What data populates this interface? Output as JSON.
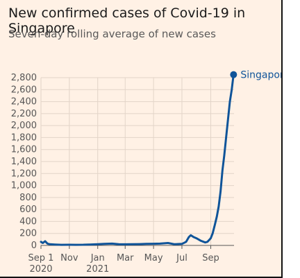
{
  "chart_data": {
    "type": "line",
    "title": "New confirmed cases of Covid-19 in Singapore",
    "subtitle": "Seven-day rolling average of new cases",
    "xlabel": "",
    "ylabel": "",
    "ylim": [
      0,
      2800
    ],
    "y_ticks": [
      "0",
      "200",
      "400",
      "600",
      "800",
      "1,000",
      "1,200",
      "1,400",
      "1,600",
      "1,800",
      "2,000",
      "2,200",
      "2,400",
      "2,600",
      "2,800"
    ],
    "x_ticks": [
      {
        "label": "Sep 1",
        "sublabel": "2020",
        "date": "2020-09-01"
      },
      {
        "label": "Nov",
        "sublabel": "",
        "date": "2020-11-01"
      },
      {
        "label": "Jan",
        "sublabel": "2021",
        "date": "2021-01-01"
      },
      {
        "label": "Mar",
        "sublabel": "",
        "date": "2021-03-01"
      },
      {
        "label": "May",
        "sublabel": "",
        "date": "2021-05-01"
      },
      {
        "label": "Jul",
        "sublabel": "",
        "date": "2021-07-01"
      },
      {
        "label": "Sep",
        "sublabel": "",
        "date": "2021-09-01"
      }
    ],
    "xlim": [
      "2020-09-01",
      "2021-10-21"
    ],
    "grid": true,
    "colors": {
      "line": "#0f5499",
      "grid": "#e2d4c8",
      "axis": "#555555",
      "background": "#fff1e5"
    },
    "series": [
      {
        "name": "Singapore",
        "x": [
          "2020-09-01",
          "2020-09-05",
          "2020-09-10",
          "2020-09-15",
          "2020-09-20",
          "2020-10-01",
          "2020-10-15",
          "2020-11-01",
          "2020-11-15",
          "2020-12-01",
          "2020-12-15",
          "2021-01-01",
          "2021-01-15",
          "2021-02-01",
          "2021-02-15",
          "2021-03-01",
          "2021-03-15",
          "2021-04-01",
          "2021-04-15",
          "2021-05-01",
          "2021-05-15",
          "2021-06-01",
          "2021-06-15",
          "2021-07-01",
          "2021-07-10",
          "2021-07-16",
          "2021-07-20",
          "2021-07-26",
          "2021-08-01",
          "2021-08-10",
          "2021-08-20",
          "2021-08-25",
          "2021-09-01",
          "2021-09-05",
          "2021-09-10",
          "2021-09-14",
          "2021-09-18",
          "2021-09-22",
          "2021-09-26",
          "2021-09-30",
          "2021-10-04",
          "2021-10-08",
          "2021-10-12",
          "2021-10-16",
          "2021-10-20"
        ],
        "values": [
          60,
          40,
          70,
          30,
          20,
          15,
          10,
          12,
          10,
          12,
          15,
          20,
          25,
          30,
          20,
          18,
          20,
          22,
          25,
          28,
          30,
          40,
          20,
          25,
          60,
          140,
          170,
          140,
          120,
          80,
          50,
          60,
          120,
          200,
          350,
          480,
          650,
          900,
          1250,
          1500,
          1800,
          2100,
          2400,
          2600,
          2850
        ]
      }
    ]
  }
}
